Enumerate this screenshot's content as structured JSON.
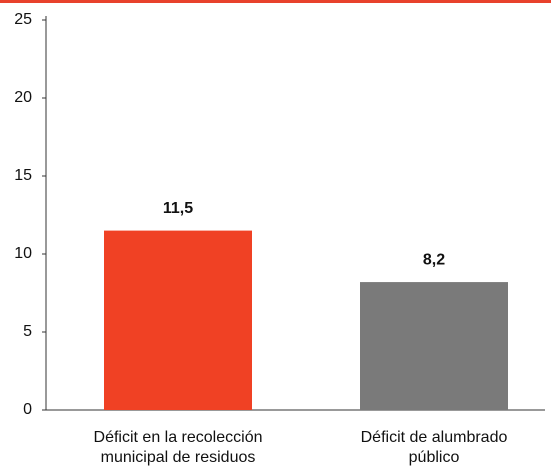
{
  "chart_data": {
    "type": "bar",
    "categories": [
      "Déficit en la  recolección\nmunicipal de residuos",
      "Déficit  de alumbrado\npúblico"
    ],
    "values": [
      11.5,
      8.2
    ],
    "value_labels": [
      "11,5",
      "8,2"
    ],
    "colors": [
      "#f04124",
      "#7a7a7a"
    ],
    "ylim": [
      0,
      25
    ],
    "yticks": [
      0,
      5,
      10,
      15,
      20,
      25
    ],
    "grid": false
  }
}
